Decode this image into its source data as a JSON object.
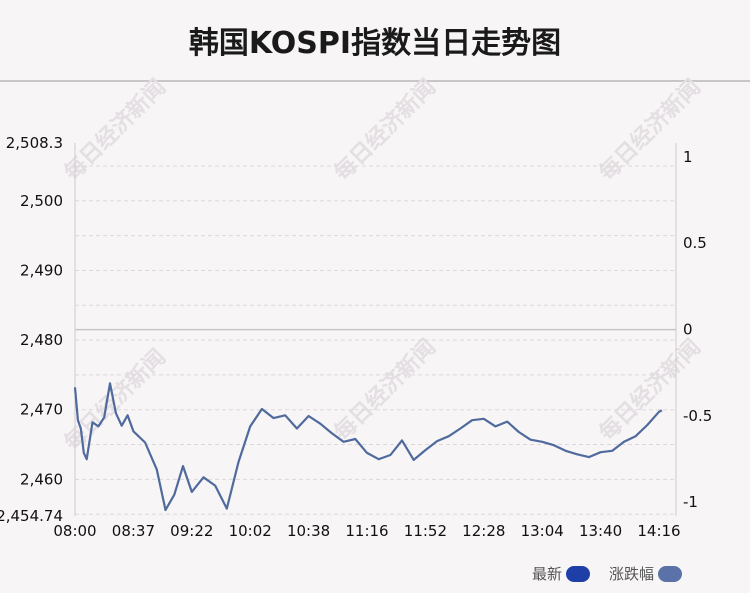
{
  "title": "韩国KOSPI指数当日走势图",
  "watermark": "每日经济新闻",
  "colors": {
    "line": "#4f6a9c",
    "latest": "#1f3fa8",
    "change": "#5a72a8",
    "grid": "#dcd8db",
    "zero": "#c8c5c7"
  },
  "legend": {
    "latest": "最新",
    "change": "涨跌幅"
  },
  "chart_data": {
    "type": "line",
    "grid": "dashed horizontal",
    "legend_position": "bottom-right",
    "x_ticks": [
      "08:00",
      "08:37",
      "09:22",
      "10:02",
      "10:38",
      "11:16",
      "11:52",
      "12:28",
      "13:04",
      "13:40",
      "14:16"
    ],
    "y_left_ticks": [
      {
        "value": 2508.3,
        "label": "2,508.3"
      },
      {
        "value": 2500,
        "label": "2,500"
      },
      {
        "value": 2490,
        "label": "2,490"
      },
      {
        "value": 2480,
        "label": "2,480"
      },
      {
        "value": 2470,
        "label": "2,470"
      },
      {
        "value": 2460,
        "label": "2,460"
      },
      {
        "value": 2454.74,
        "label": "2,454.74"
      }
    ],
    "y_right_ticks": [
      {
        "value": 1,
        "label": "1"
      },
      {
        "value": 0.5,
        "label": "0.5"
      },
      {
        "value": 0,
        "label": "0"
      },
      {
        "value": -0.5,
        "label": "-0.5"
      },
      {
        "value": -1,
        "label": "-1"
      }
    ],
    "ylim_left": [
      2454.74,
      2508.3
    ],
    "ylim_right": [
      -1.08,
      1.08
    ],
    "previous_close": 2481.5,
    "series": [
      {
        "x_index": [
          0,
          0.05,
          0.1,
          0.15,
          0.2,
          0.3,
          0.4,
          0.5,
          0.6,
          0.7,
          0.8,
          0.9,
          1.0,
          1.2,
          1.4,
          1.55,
          1.7,
          1.85,
          2.0,
          2.2,
          2.4,
          2.6,
          2.8,
          3.0,
          3.2,
          3.4,
          3.6,
          3.8,
          4.0,
          4.2,
          4.4,
          4.6,
          4.8,
          5.0,
          5.2,
          5.4,
          5.6,
          5.8,
          6.0,
          6.2,
          6.4,
          6.6,
          6.8,
          7.0,
          7.2,
          7.4,
          7.6,
          7.8,
          8.0,
          8.2,
          8.4,
          8.6,
          8.8,
          9.0,
          9.2,
          9.4,
          9.6,
          9.8,
          10.0,
          10.05
        ],
        "values": [
          2473.2,
          2468.5,
          2467.3,
          2463.8,
          2462.9,
          2468.2,
          2467.6,
          2468.9,
          2473.8,
          2469.5,
          2467.7,
          2469.2,
          2466.9,
          2465.3,
          2461.4,
          2455.6,
          2457.8,
          2461.9,
          2458.2,
          2460.3,
          2459.1,
          2455.8,
          2462.5,
          2467.6,
          2470.1,
          2468.8,
          2469.2,
          2467.3,
          2469.1,
          2468.0,
          2466.6,
          2465.4,
          2465.8,
          2463.8,
          2462.9,
          2463.5,
          2465.6,
          2462.8,
          2464.2,
          2465.5,
          2466.2,
          2467.3,
          2468.5,
          2468.7,
          2467.6,
          2468.3,
          2466.8,
          2465.7,
          2465.4,
          2464.9,
          2464.1,
          2463.6,
          2463.2,
          2463.9,
          2464.1,
          2465.4,
          2466.2,
          2467.8,
          2469.7,
          2469.9
        ]
      }
    ]
  }
}
